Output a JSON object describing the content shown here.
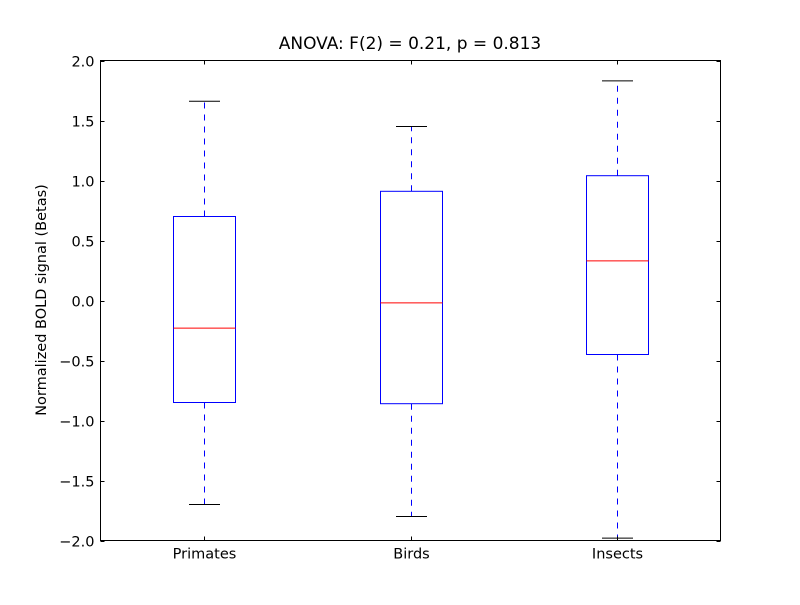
{
  "chart_data": {
    "type": "boxplot",
    "title": "ANOVA: F(2) = 0.21, p = 0.813",
    "xlabel": "",
    "ylabel": "Normalized BOLD signal (Betas)",
    "ylim": [
      -2.0,
      2.0
    ],
    "yticks": [
      "−2.0",
      "−1.5",
      "−1.0",
      "−0.5",
      "0.0",
      "0.5",
      "1.0",
      "1.5",
      "2.0"
    ],
    "ytick_values": [
      -2.0,
      -1.5,
      -1.0,
      -0.5,
      0.0,
      0.5,
      1.0,
      1.5,
      2.0
    ],
    "categories": [
      "Primates",
      "Birds",
      "Insects"
    ],
    "boxes": [
      {
        "whisker_low": -1.7,
        "q1": -0.85,
        "median": -0.23,
        "q3": 0.7,
        "whisker_high": 1.66
      },
      {
        "whisker_low": -1.8,
        "q1": -0.86,
        "median": -0.02,
        "q3": 0.91,
        "whisker_high": 1.45
      },
      {
        "whisker_low": -1.98,
        "q1": -0.45,
        "median": 0.33,
        "q3": 1.04,
        "whisker_high": 1.83
      }
    ],
    "grid": false,
    "colors": {
      "box": "#0000ff",
      "median": "#ff0000",
      "whisker": "#0000ff",
      "cap": "#000000"
    }
  }
}
